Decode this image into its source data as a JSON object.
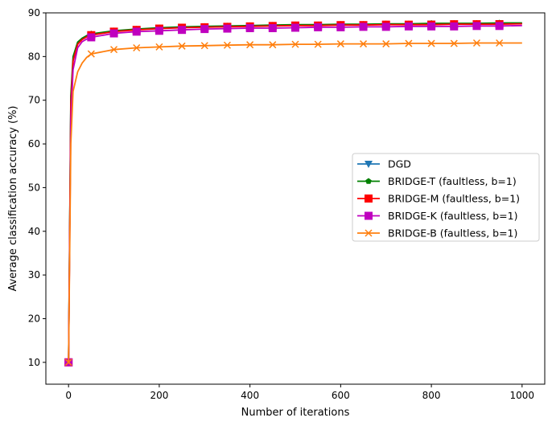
{
  "chart_data": {
    "type": "line",
    "title": "",
    "xlabel": "Number of iterations",
    "ylabel": "Average classification accuracy (%)",
    "xlim": [
      -50,
      1050
    ],
    "ylim": [
      5,
      90
    ],
    "xticks": [
      0,
      200,
      400,
      600,
      800,
      1000
    ],
    "yticks": [
      10,
      20,
      30,
      40,
      50,
      60,
      70,
      80,
      90
    ],
    "grid": false,
    "legend_position": "center-right",
    "marker_every": 50,
    "x": [
      0,
      5,
      10,
      20,
      30,
      40,
      50,
      100,
      150,
      200,
      250,
      300,
      350,
      400,
      450,
      500,
      550,
      600,
      650,
      700,
      750,
      800,
      850,
      900,
      950,
      1000
    ],
    "series": [
      {
        "name": "DGD",
        "color": "#1f77b4",
        "marker": "triangle-down",
        "values": [
          10,
          70,
          79,
          83,
          84,
          84.6,
          85.0,
          85.8,
          86.2,
          86.5,
          86.7,
          86.8,
          86.9,
          87.0,
          87.1,
          87.2,
          87.2,
          87.3,
          87.3,
          87.4,
          87.4,
          87.5,
          87.5,
          87.5,
          87.6,
          87.6
        ]
      },
      {
        "name": "BRIDGE-T (faultless, b=1)",
        "color": "#008000",
        "marker": "pentagon",
        "values": [
          10,
          71,
          80,
          83.3,
          84.2,
          84.8,
          85.2,
          85.9,
          86.3,
          86.6,
          86.8,
          86.9,
          87.0,
          87.1,
          87.2,
          87.3,
          87.3,
          87.4,
          87.4,
          87.5,
          87.5,
          87.6,
          87.6,
          87.6,
          87.7,
          87.7
        ]
      },
      {
        "name": "BRIDGE-M (faultless, b=1)",
        "color": "#ff0000",
        "marker": "square",
        "values": [
          10,
          69,
          79,
          82.8,
          83.9,
          84.5,
          84.9,
          85.7,
          86.1,
          86.4,
          86.6,
          86.7,
          86.8,
          86.9,
          87.0,
          87.1,
          87.1,
          87.2,
          87.2,
          87.3,
          87.3,
          87.3,
          87.4,
          87.4,
          87.4,
          87.5
        ]
      },
      {
        "name": "BRIDGE-K (faultless, b=1)",
        "color": "#bf00bf",
        "marker": "square",
        "values": [
          10,
          65,
          77,
          82.0,
          83.4,
          84.0,
          84.4,
          85.3,
          85.7,
          85.9,
          86.1,
          86.3,
          86.4,
          86.5,
          86.5,
          86.6,
          86.7,
          86.7,
          86.8,
          86.8,
          86.9,
          86.9,
          86.9,
          87.0,
          87.0,
          87.1
        ]
      },
      {
        "name": "BRIDGE-B (faultless, b=1)",
        "color": "#ff7f0e",
        "marker": "x",
        "values": [
          10,
          60,
          72,
          76.5,
          78.5,
          79.8,
          80.6,
          81.6,
          82.0,
          82.2,
          82.4,
          82.5,
          82.6,
          82.7,
          82.7,
          82.8,
          82.8,
          82.9,
          82.9,
          82.9,
          83.0,
          83.0,
          83.0,
          83.1,
          83.1,
          83.1
        ]
      }
    ]
  }
}
